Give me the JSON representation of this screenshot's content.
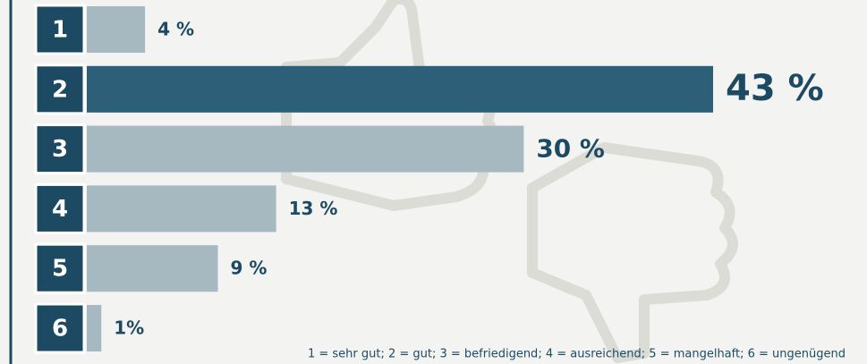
{
  "chart_data": {
    "type": "bar",
    "orientation": "horizontal",
    "categories": [
      "1",
      "2",
      "3",
      "4",
      "5",
      "6"
    ],
    "values": [
      4,
      43,
      30,
      13,
      9,
      1
    ],
    "value_labels": [
      "4 %",
      "43 %",
      "30 %",
      "13 %",
      "9 %",
      "1%"
    ],
    "colors": [
      "#a6b8c0",
      "#2e5f78",
      "#a6b8c0",
      "#a6b8c0",
      "#a6b8c0",
      "#a6b8c0"
    ],
    "footnote": "1 = sehr gut; 2 = gut; 3 = befriedigend; 4 = ausreichend; 5 = mangelhaft; 6 = ungenügend"
  }
}
